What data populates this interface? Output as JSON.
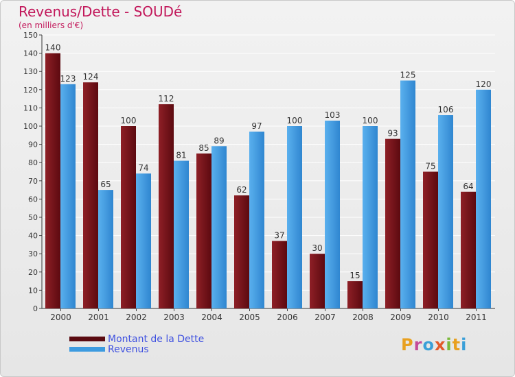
{
  "title": "Revenus/Dette - SOUDé",
  "subtitle": "(en milliers d'€)",
  "logo_text": "Proxiti",
  "colors": {
    "debt": "#7a1018",
    "revenue": "#3d9be0",
    "title": "#c2185b",
    "legend_text": "#3f51e0"
  },
  "chart_data": {
    "type": "bar",
    "categories": [
      "2000",
      "2001",
      "2002",
      "2003",
      "2004",
      "2005",
      "2006",
      "2007",
      "2008",
      "2009",
      "2010",
      "2011"
    ],
    "series": [
      {
        "name": "Montant de la Dette",
        "values": [
          140,
          124,
          100,
          112,
          85,
          62,
          37,
          30,
          15,
          93,
          75,
          64
        ]
      },
      {
        "name": "Revenus",
        "values": [
          123,
          65,
          74,
          81,
          89,
          97,
          100,
          103,
          100,
          125,
          106,
          120
        ]
      }
    ],
    "yticks": [
      0,
      10,
      20,
      30,
      40,
      50,
      60,
      70,
      80,
      90,
      100,
      110,
      120,
      130,
      140,
      150
    ],
    "ylim": [
      0,
      150
    ],
    "grid": true,
    "legend_position": "bottom-left"
  }
}
